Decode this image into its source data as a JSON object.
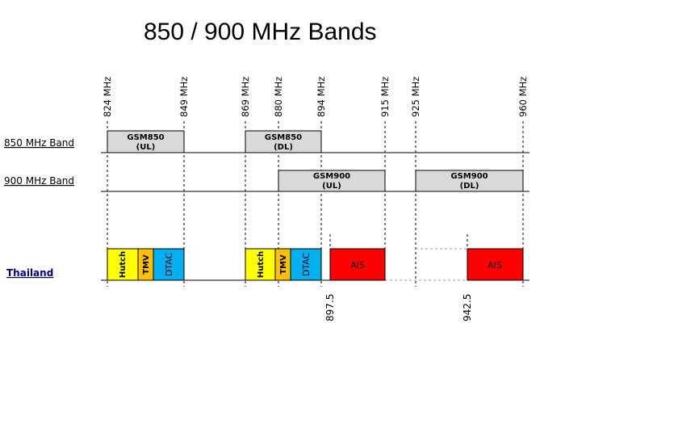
{
  "title": "850 / 900 MHz Bands",
  "frequency_markers": [
    "824 MHz",
    "849 MHz",
    "869 MHz",
    "880 MHz",
    "894 MHz",
    "915 MHz",
    "925 MHz",
    "960 MHz"
  ],
  "rows": {
    "band850": "850 MHz Band",
    "band900": "900 MHz Band",
    "thailand": "Thailand"
  },
  "band_blocks": [
    {
      "line1": "GSM850",
      "line2": "(UL)"
    },
    {
      "line1": "GSM850",
      "line2": "(DL)"
    },
    {
      "line1": "GSM900",
      "line2": "(UL)"
    },
    {
      "line1": "GSM900",
      "line2": "(DL)"
    }
  ],
  "operators": [
    {
      "name": "Hutch",
      "color": "#ffff00"
    },
    {
      "name": "TMV",
      "color": "#ffc000"
    },
    {
      "name": "DTAC",
      "color": "#00b0f0"
    },
    {
      "name": "Hutch",
      "color": "#ffff00"
    },
    {
      "name": "TMV",
      "color": "#ffc000"
    },
    {
      "name": "DTAC",
      "color": "#00b0f0"
    },
    {
      "name": "AIS",
      "color": "#ff0000"
    },
    {
      "name": "AIS",
      "color": "#ff0000"
    }
  ],
  "sub_markers": [
    "897.5",
    "942.5"
  ]
}
